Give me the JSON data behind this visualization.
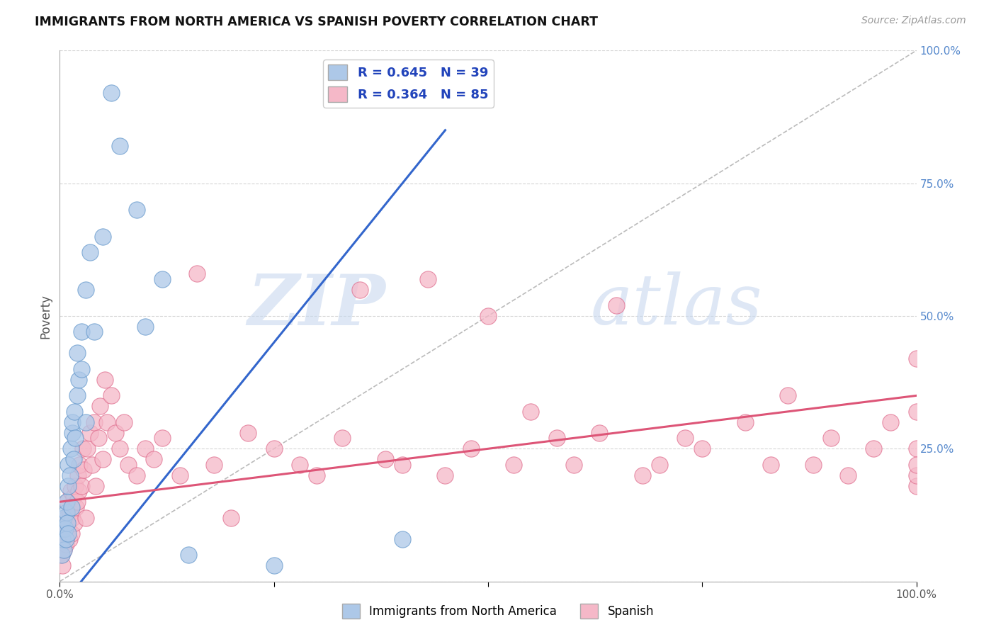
{
  "title": "IMMIGRANTS FROM NORTH AMERICA VS SPANISH POVERTY CORRELATION CHART",
  "source": "Source: ZipAtlas.com",
  "ylabel": "Poverty",
  "blue_R": 0.645,
  "blue_N": 39,
  "pink_R": 0.364,
  "pink_N": 85,
  "blue_color": "#adc8e8",
  "pink_color": "#f5b8c8",
  "blue_edge": "#6699cc",
  "pink_edge": "#e07090",
  "legend_text_color": "#2244bb",
  "background_color": "#ffffff",
  "grid_color": "#cccccc",
  "watermark_zip": "ZIP",
  "watermark_atlas": "atlas",
  "blue_line_color": "#3366cc",
  "pink_line_color": "#dd5577",
  "diag_color": "#bbbbbb",
  "blue_scatter_x": [
    0.002,
    0.003,
    0.004,
    0.005,
    0.005,
    0.006,
    0.007,
    0.008,
    0.008,
    0.009,
    0.01,
    0.01,
    0.01,
    0.012,
    0.013,
    0.014,
    0.015,
    0.015,
    0.016,
    0.017,
    0.018,
    0.02,
    0.02,
    0.022,
    0.025,
    0.025,
    0.03,
    0.03,
    0.035,
    0.04,
    0.05,
    0.06,
    0.07,
    0.09,
    0.1,
    0.12,
    0.15,
    0.25,
    0.4
  ],
  "blue_scatter_y": [
    0.05,
    0.08,
    0.1,
    0.06,
    0.12,
    0.1,
    0.08,
    0.13,
    0.15,
    0.11,
    0.09,
    0.18,
    0.22,
    0.2,
    0.25,
    0.14,
    0.28,
    0.3,
    0.23,
    0.32,
    0.27,
    0.35,
    0.43,
    0.38,
    0.4,
    0.47,
    0.3,
    0.55,
    0.62,
    0.47,
    0.65,
    0.92,
    0.82,
    0.7,
    0.48,
    0.57,
    0.05,
    0.03,
    0.08
  ],
  "pink_scatter_x": [
    0.002,
    0.003,
    0.004,
    0.005,
    0.006,
    0.007,
    0.008,
    0.009,
    0.01,
    0.011,
    0.012,
    0.013,
    0.014,
    0.015,
    0.016,
    0.017,
    0.018,
    0.019,
    0.02,
    0.021,
    0.022,
    0.023,
    0.025,
    0.027,
    0.028,
    0.03,
    0.032,
    0.035,
    0.038,
    0.04,
    0.042,
    0.045,
    0.047,
    0.05,
    0.053,
    0.055,
    0.06,
    0.065,
    0.07,
    0.075,
    0.08,
    0.09,
    0.1,
    0.11,
    0.12,
    0.14,
    0.16,
    0.18,
    0.2,
    0.22,
    0.25,
    0.28,
    0.3,
    0.33,
    0.35,
    0.38,
    0.4,
    0.43,
    0.45,
    0.48,
    0.5,
    0.53,
    0.55,
    0.58,
    0.6,
    0.63,
    0.65,
    0.68,
    0.7,
    0.73,
    0.75,
    0.8,
    0.83,
    0.85,
    0.88,
    0.9,
    0.92,
    0.95,
    0.97,
    1.0,
    1.0,
    1.0,
    1.0,
    1.0,
    1.0
  ],
  "pink_scatter_y": [
    0.05,
    0.03,
    0.08,
    0.06,
    0.1,
    0.07,
    0.12,
    0.15,
    0.1,
    0.08,
    0.13,
    0.17,
    0.09,
    0.12,
    0.16,
    0.11,
    0.18,
    0.14,
    0.15,
    0.2,
    0.17,
    0.22,
    0.18,
    0.25,
    0.21,
    0.12,
    0.25,
    0.28,
    0.22,
    0.3,
    0.18,
    0.27,
    0.33,
    0.23,
    0.38,
    0.3,
    0.35,
    0.28,
    0.25,
    0.3,
    0.22,
    0.2,
    0.25,
    0.23,
    0.27,
    0.2,
    0.58,
    0.22,
    0.12,
    0.28,
    0.25,
    0.22,
    0.2,
    0.27,
    0.55,
    0.23,
    0.22,
    0.57,
    0.2,
    0.25,
    0.5,
    0.22,
    0.32,
    0.27,
    0.22,
    0.28,
    0.52,
    0.2,
    0.22,
    0.27,
    0.25,
    0.3,
    0.22,
    0.35,
    0.22,
    0.27,
    0.2,
    0.25,
    0.3,
    0.42,
    0.18,
    0.2,
    0.25,
    0.32,
    0.22
  ]
}
